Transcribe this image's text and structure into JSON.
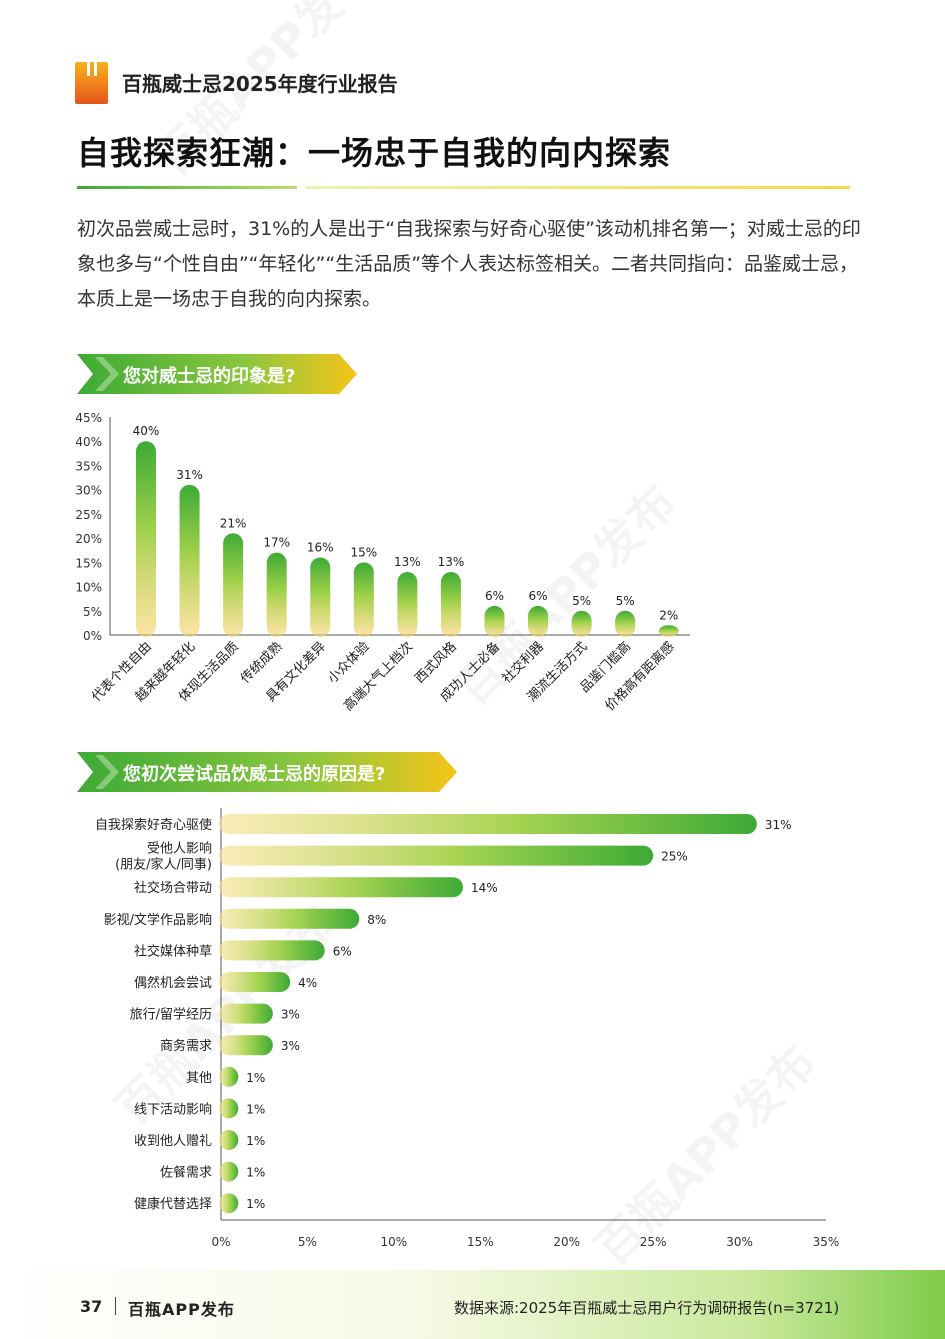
{
  "header": {
    "report_title": "百瓶威士忌2025年度行业报告"
  },
  "main_title": "自我探索狂潮：一场忠于自我的向内探索",
  "intro": "初次品尝威士忌时，31%的人是出于“自我探索与好奇心驱使”该动机排名第一；对威士忌的印象也多与“个性自由”“年轻化”“生活品质”等个人表达标签相关。二者共同指向：品鉴威士忌，本质上是一场忠于自我的向内探索。",
  "section1": {
    "title": "您对威士忌的印象是?"
  },
  "section2": {
    "title": "您初次尝试品饮威士忌的原因是?"
  },
  "chart_data": [
    {
      "type": "bar",
      "orientation": "vertical",
      "categories": [
        "代表个性自由",
        "越来越年轻化",
        "体现生活品质",
        "传统成熟",
        "具有文化差异",
        "小众体验",
        "高端大气上档次",
        "西式风格",
        "成功人士必备",
        "社交利器",
        "潮流生活方式",
        "品鉴门槛高",
        "价格高有距离感"
      ],
      "values": [
        40,
        31,
        21,
        17,
        16,
        15,
        13,
        13,
        6,
        6,
        5,
        5,
        2
      ],
      "value_labels": [
        "40%",
        "31%",
        "21%",
        "17%",
        "16%",
        "15%",
        "13%",
        "13%",
        "6%",
        "6%",
        "5%",
        "5%",
        "2%"
      ],
      "yticks": [
        "0%",
        "5%",
        "10%",
        "15%",
        "20%",
        "25%",
        "30%",
        "35%",
        "40%",
        "45%"
      ],
      "ylim": [
        0,
        45
      ],
      "color_top": "#3daa35",
      "color_bottom": "#f7cf5f"
    },
    {
      "type": "bar",
      "orientation": "horizontal",
      "categories": [
        "自我探索好奇心驱使",
        "受他人影响\n(朋友/家人/同事)",
        "社交场合带动",
        "影视/文学作品影响",
        "社交媒体种草",
        "偶然机会尝试",
        "旅行/留学经历",
        "商务需求",
        "其他",
        "线下活动影响",
        "收到他人赠礼",
        "佐餐需求",
        "健康代替选择"
      ],
      "values": [
        31,
        25,
        14,
        8,
        6,
        4,
        3,
        3,
        1,
        1,
        1,
        1,
        1
      ],
      "value_labels": [
        "31%",
        "25%",
        "14%",
        "8%",
        "6%",
        "4%",
        "3%",
        "3%",
        "1%",
        "1%",
        "1%",
        "1%",
        "1%"
      ],
      "xticks": [
        "0%",
        "5%",
        "10%",
        "15%",
        "20%",
        "25%",
        "30%",
        "35%"
      ],
      "xlim": [
        0,
        35
      ],
      "color_left": "#f7e08a",
      "color_right": "#3daa35"
    }
  ],
  "footer": {
    "page_number": "37",
    "publisher": "百瓶APP发布",
    "source": "数据来源:2025年百瓶威士忌用户行为调研报告(n=3721)"
  }
}
